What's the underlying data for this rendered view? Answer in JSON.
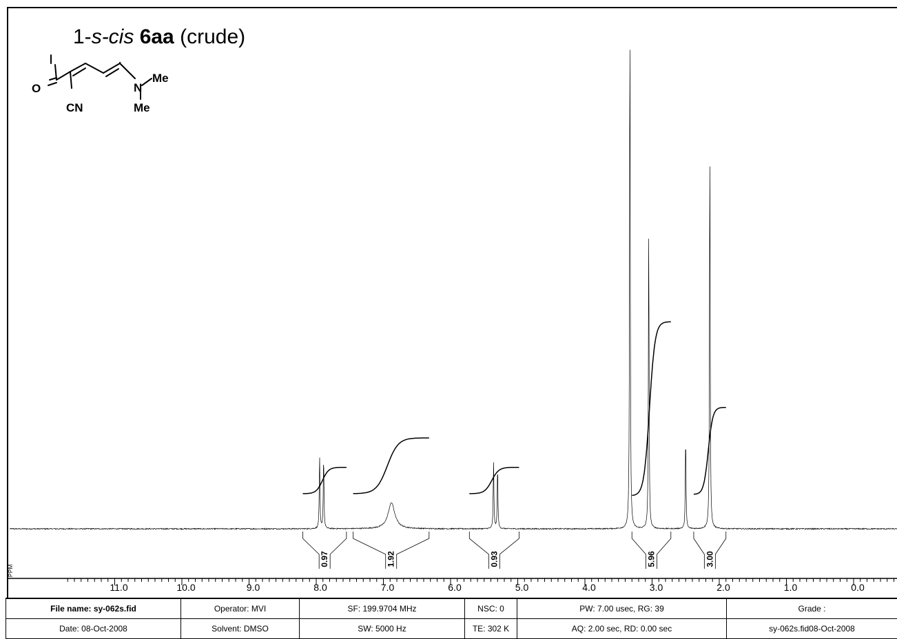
{
  "title": {
    "prefix": "1-",
    "italic": "s-cis",
    "bold": "6aa",
    "suffix": "(crude)"
  },
  "structure_labels": {
    "oxygen": "O",
    "nitrile": "CN",
    "nitrogen": "N",
    "methyl_top": "Me",
    "methyl_bottom": "Me"
  },
  "axis_unit_label": "PPM",
  "info_table": {
    "row1": [
      "File name: sy-062s.fid",
      "Operator: MVI",
      "SF: 199.9704 MHz",
      "NSC: 0",
      "PW: 7.00 usec, RG: 39",
      "Grade :"
    ],
    "row2": [
      "Date: 08-Oct-2008",
      "Solvent: DMSO",
      "SW: 5000 Hz",
      "TE: 302 K",
      "AQ: 2.00 sec, RD: 0.00 sec",
      "sy-062s.fid08-Oct-2008"
    ]
  },
  "chart_data": {
    "type": "line",
    "title": "1-s-cis 6aa (crude)",
    "xlabel": "PPM",
    "xlim": [
      11.7,
      -0.7
    ],
    "x_reversed": true,
    "x_tick_labels": [
      "11.0",
      "10.0",
      "9.0",
      "8.0",
      "7.0",
      "6.0",
      "5.0",
      "4.0",
      "3.0",
      "2.0",
      "1.0",
      "0.0"
    ],
    "x_ticks": [
      11.0,
      10.0,
      9.0,
      8.0,
      7.0,
      6.0,
      5.0,
      4.0,
      3.0,
      2.0,
      1.0,
      0.0
    ],
    "grid": false,
    "peaks": [
      {
        "ppm": 7.95,
        "height": 0.14
      },
      {
        "ppm": 7.89,
        "height": 0.14
      },
      {
        "ppm": 6.88,
        "height": 0.05
      },
      {
        "ppm": 5.36,
        "height": 0.13
      },
      {
        "ppm": 5.3,
        "height": 0.12
      },
      {
        "ppm": 3.33,
        "height": 1.0
      },
      {
        "ppm": 3.05,
        "height": 0.58
      },
      {
        "ppm": 2.5,
        "height": 0.18
      },
      {
        "ppm": 2.14,
        "height": 0.74
      }
    ],
    "integrals": [
      {
        "from": 8.2,
        "to": 7.55,
        "value": "0.97",
        "rise": 0.044
      },
      {
        "from": 7.45,
        "to": 6.32,
        "value": "1.92",
        "rise": 0.093
      },
      {
        "from": 5.72,
        "to": 4.98,
        "value": "0.93",
        "rise": 0.044
      },
      {
        "from": 3.3,
        "to": 2.72,
        "value": "5.96",
        "rise": 0.29
      },
      {
        "from": 2.38,
        "to": 1.9,
        "value": "3.00",
        "rise": 0.145
      }
    ]
  }
}
